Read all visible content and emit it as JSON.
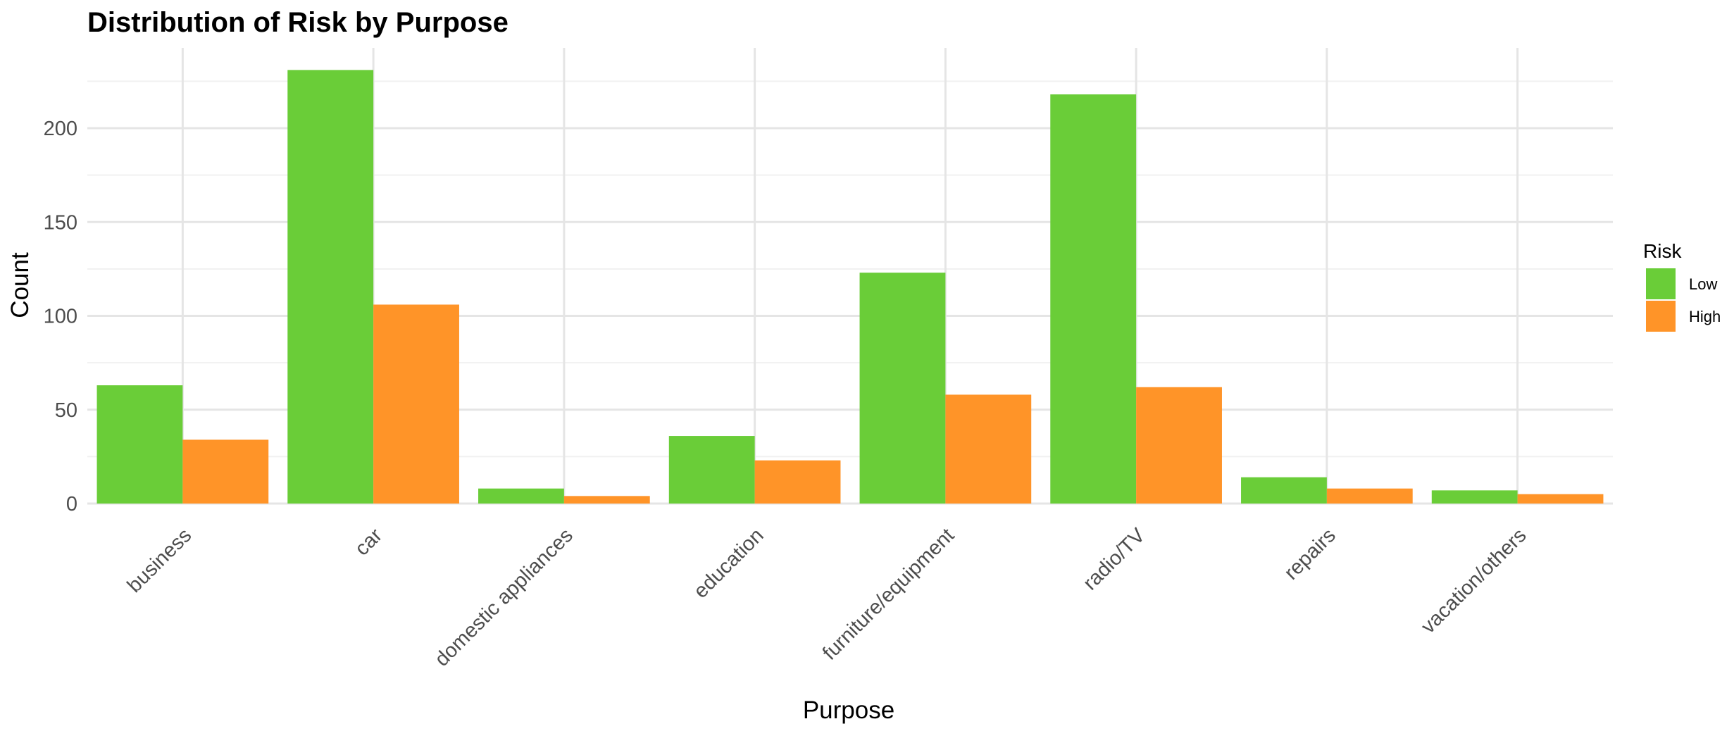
{
  "chart_data": {
    "type": "bar",
    "title": "Distribution of Risk by Purpose",
    "xlabel": "Purpose",
    "ylabel": "Count",
    "categories": [
      "business",
      "car",
      "domestic appliances",
      "education",
      "furniture/equipment",
      "radio/TV",
      "repairs",
      "vacation/others"
    ],
    "series": [
      {
        "name": "Low",
        "color": "#6ACD38",
        "values": [
          63,
          231,
          8,
          36,
          123,
          218,
          14,
          7
        ]
      },
      {
        "name": "High",
        "color": "#FF9428",
        "values": [
          34,
          106,
          4,
          23,
          58,
          62,
          8,
          5
        ]
      }
    ],
    "ylim": [
      0,
      240
    ],
    "yticks": [
      0,
      50,
      100,
      150,
      200
    ],
    "grid": true,
    "legend": {
      "title": "Risk",
      "placement": "right"
    }
  }
}
